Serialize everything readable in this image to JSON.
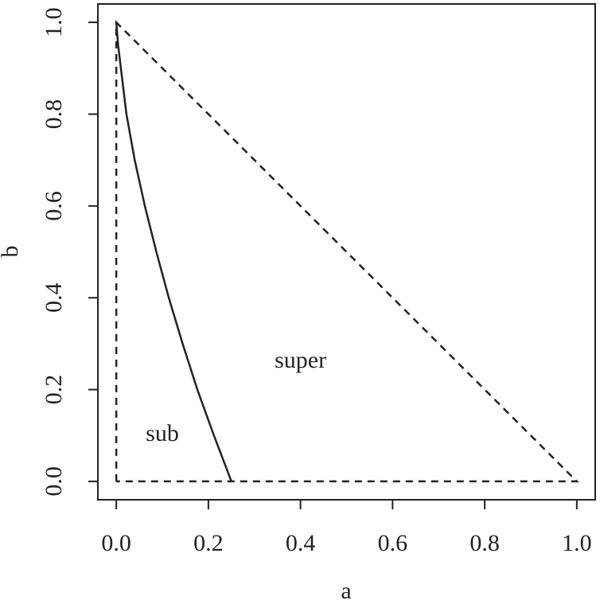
{
  "chart_data": {
    "type": "line",
    "xlabel": "a",
    "ylabel": "b",
    "xlim": [
      -0.04,
      1.04
    ],
    "ylim": [
      -0.04,
      1.04
    ],
    "xticks": [
      {
        "value": 0,
        "label": "0.0"
      },
      {
        "value": 0.2,
        "label": "0.2"
      },
      {
        "value": 0.4,
        "label": "0.4"
      },
      {
        "value": 0.6,
        "label": "0.6"
      },
      {
        "value": 0.8,
        "label": "0.8"
      },
      {
        "value": 1,
        "label": "1.0"
      }
    ],
    "yticks": [
      {
        "value": 0,
        "label": "0.0"
      },
      {
        "value": 0.2,
        "label": "0.2"
      },
      {
        "value": 0.4,
        "label": "0.4"
      },
      {
        "value": 0.6,
        "label": "0.6"
      },
      {
        "value": 0.8,
        "label": "0.8"
      },
      {
        "value": 1,
        "label": "1.0"
      }
    ],
    "series": [
      {
        "color": "#222222",
        "dash": true,
        "x": [
          0,
          0,
          1,
          0
        ],
        "values": [
          0,
          1,
          0,
          0
        ]
      },
      {
        "color": "#222222",
        "dash": false,
        "x": [
          0,
          0.004,
          0.01,
          0.022,
          0.04,
          0.062,
          0.087,
          0.114,
          0.144,
          0.176,
          0.212,
          0.25
        ],
        "values": [
          1,
          0.95,
          0.9,
          0.8,
          0.7,
          0.6,
          0.5,
          0.4,
          0.3,
          0.2,
          0.1,
          0
        ]
      }
    ],
    "annotations": [
      {
        "text": "super",
        "x": 0.4,
        "y": 0.26
      },
      {
        "text": "sub",
        "x": 0.1,
        "y": 0.1
      }
    ]
  }
}
